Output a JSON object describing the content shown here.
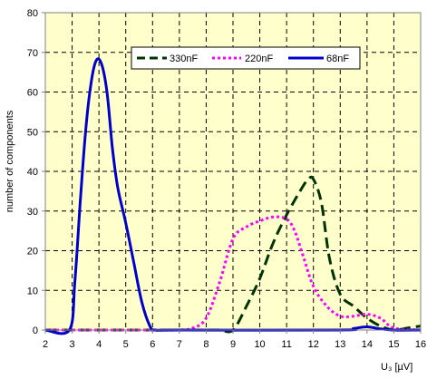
{
  "chart_data": {
    "type": "line",
    "title": "",
    "xlabel": "U₃ [µV]",
    "ylabel": "number of components",
    "xlim": [
      2,
      16
    ],
    "ylim": [
      0,
      80
    ],
    "xticks": [
      2,
      3,
      4,
      5,
      6,
      7,
      8,
      9,
      10,
      11,
      12,
      13,
      14,
      15,
      16
    ],
    "xtick_labels": [
      "2",
      "3",
      "4",
      "5",
      "6",
      "7",
      "8",
      "9",
      "10",
      "11",
      "12",
      "13",
      "14",
      "15",
      "16"
    ],
    "yticks": [
      0,
      10,
      20,
      30,
      40,
      50,
      60,
      70,
      80
    ],
    "ytick_labels": [
      "0",
      "10",
      "20",
      "30",
      "40",
      "50",
      "60",
      "70",
      "80"
    ],
    "grid": true,
    "legend_placement": "top-right",
    "plot_background": "#FFFFCC",
    "series": [
      {
        "name": "330nF",
        "color": "#003300",
        "style": "dashed",
        "x": [
          2,
          3,
          4,
          5,
          6,
          7,
          8,
          8.5,
          9,
          9.5,
          10,
          10.5,
          11,
          11.5,
          11.8,
          12,
          12.3,
          12.6,
          13,
          13.5,
          14,
          14.5,
          15,
          15.5,
          16
        ],
        "y": [
          0,
          0,
          0,
          0,
          0,
          0,
          0,
          0,
          0,
          6,
          13,
          22,
          29,
          35,
          38,
          38,
          32,
          18,
          9,
          6,
          3,
          1,
          0,
          0.5,
          1
        ]
      },
      {
        "name": "220nF",
        "color": "#FF00FF",
        "style": "dotted",
        "x": [
          2,
          3,
          4,
          5,
          6,
          7,
          7.5,
          8,
          8.5,
          9,
          9.5,
          10,
          10.5,
          11,
          11.3,
          11.6,
          12,
          12.5,
          13,
          13.5,
          14,
          14.5,
          15,
          16
        ],
        "y": [
          0,
          0,
          0,
          0,
          0,
          0,
          0.5,
          3,
          12,
          23,
          26,
          27.5,
          28.5,
          28,
          25,
          19,
          11,
          6,
          3.5,
          3.5,
          4,
          3,
          0.5,
          0
        ]
      },
      {
        "name": "68nF",
        "color": "#0000CC",
        "style": "solid",
        "x": [
          2,
          2.9,
          3.1,
          3.3,
          3.5,
          3.7,
          3.9,
          4.1,
          4.3,
          4.5,
          4.7,
          5,
          5.3,
          5.6,
          5.9,
          6.1,
          7,
          13,
          13.5,
          14,
          14.5,
          15,
          16
        ],
        "y": [
          0,
          0,
          12,
          32,
          50,
          62,
          68,
          67,
          60,
          46,
          36,
          27,
          17,
          7,
          1,
          0,
          0,
          0,
          0.4,
          0.8,
          0.3,
          0,
          0
        ]
      }
    ]
  }
}
